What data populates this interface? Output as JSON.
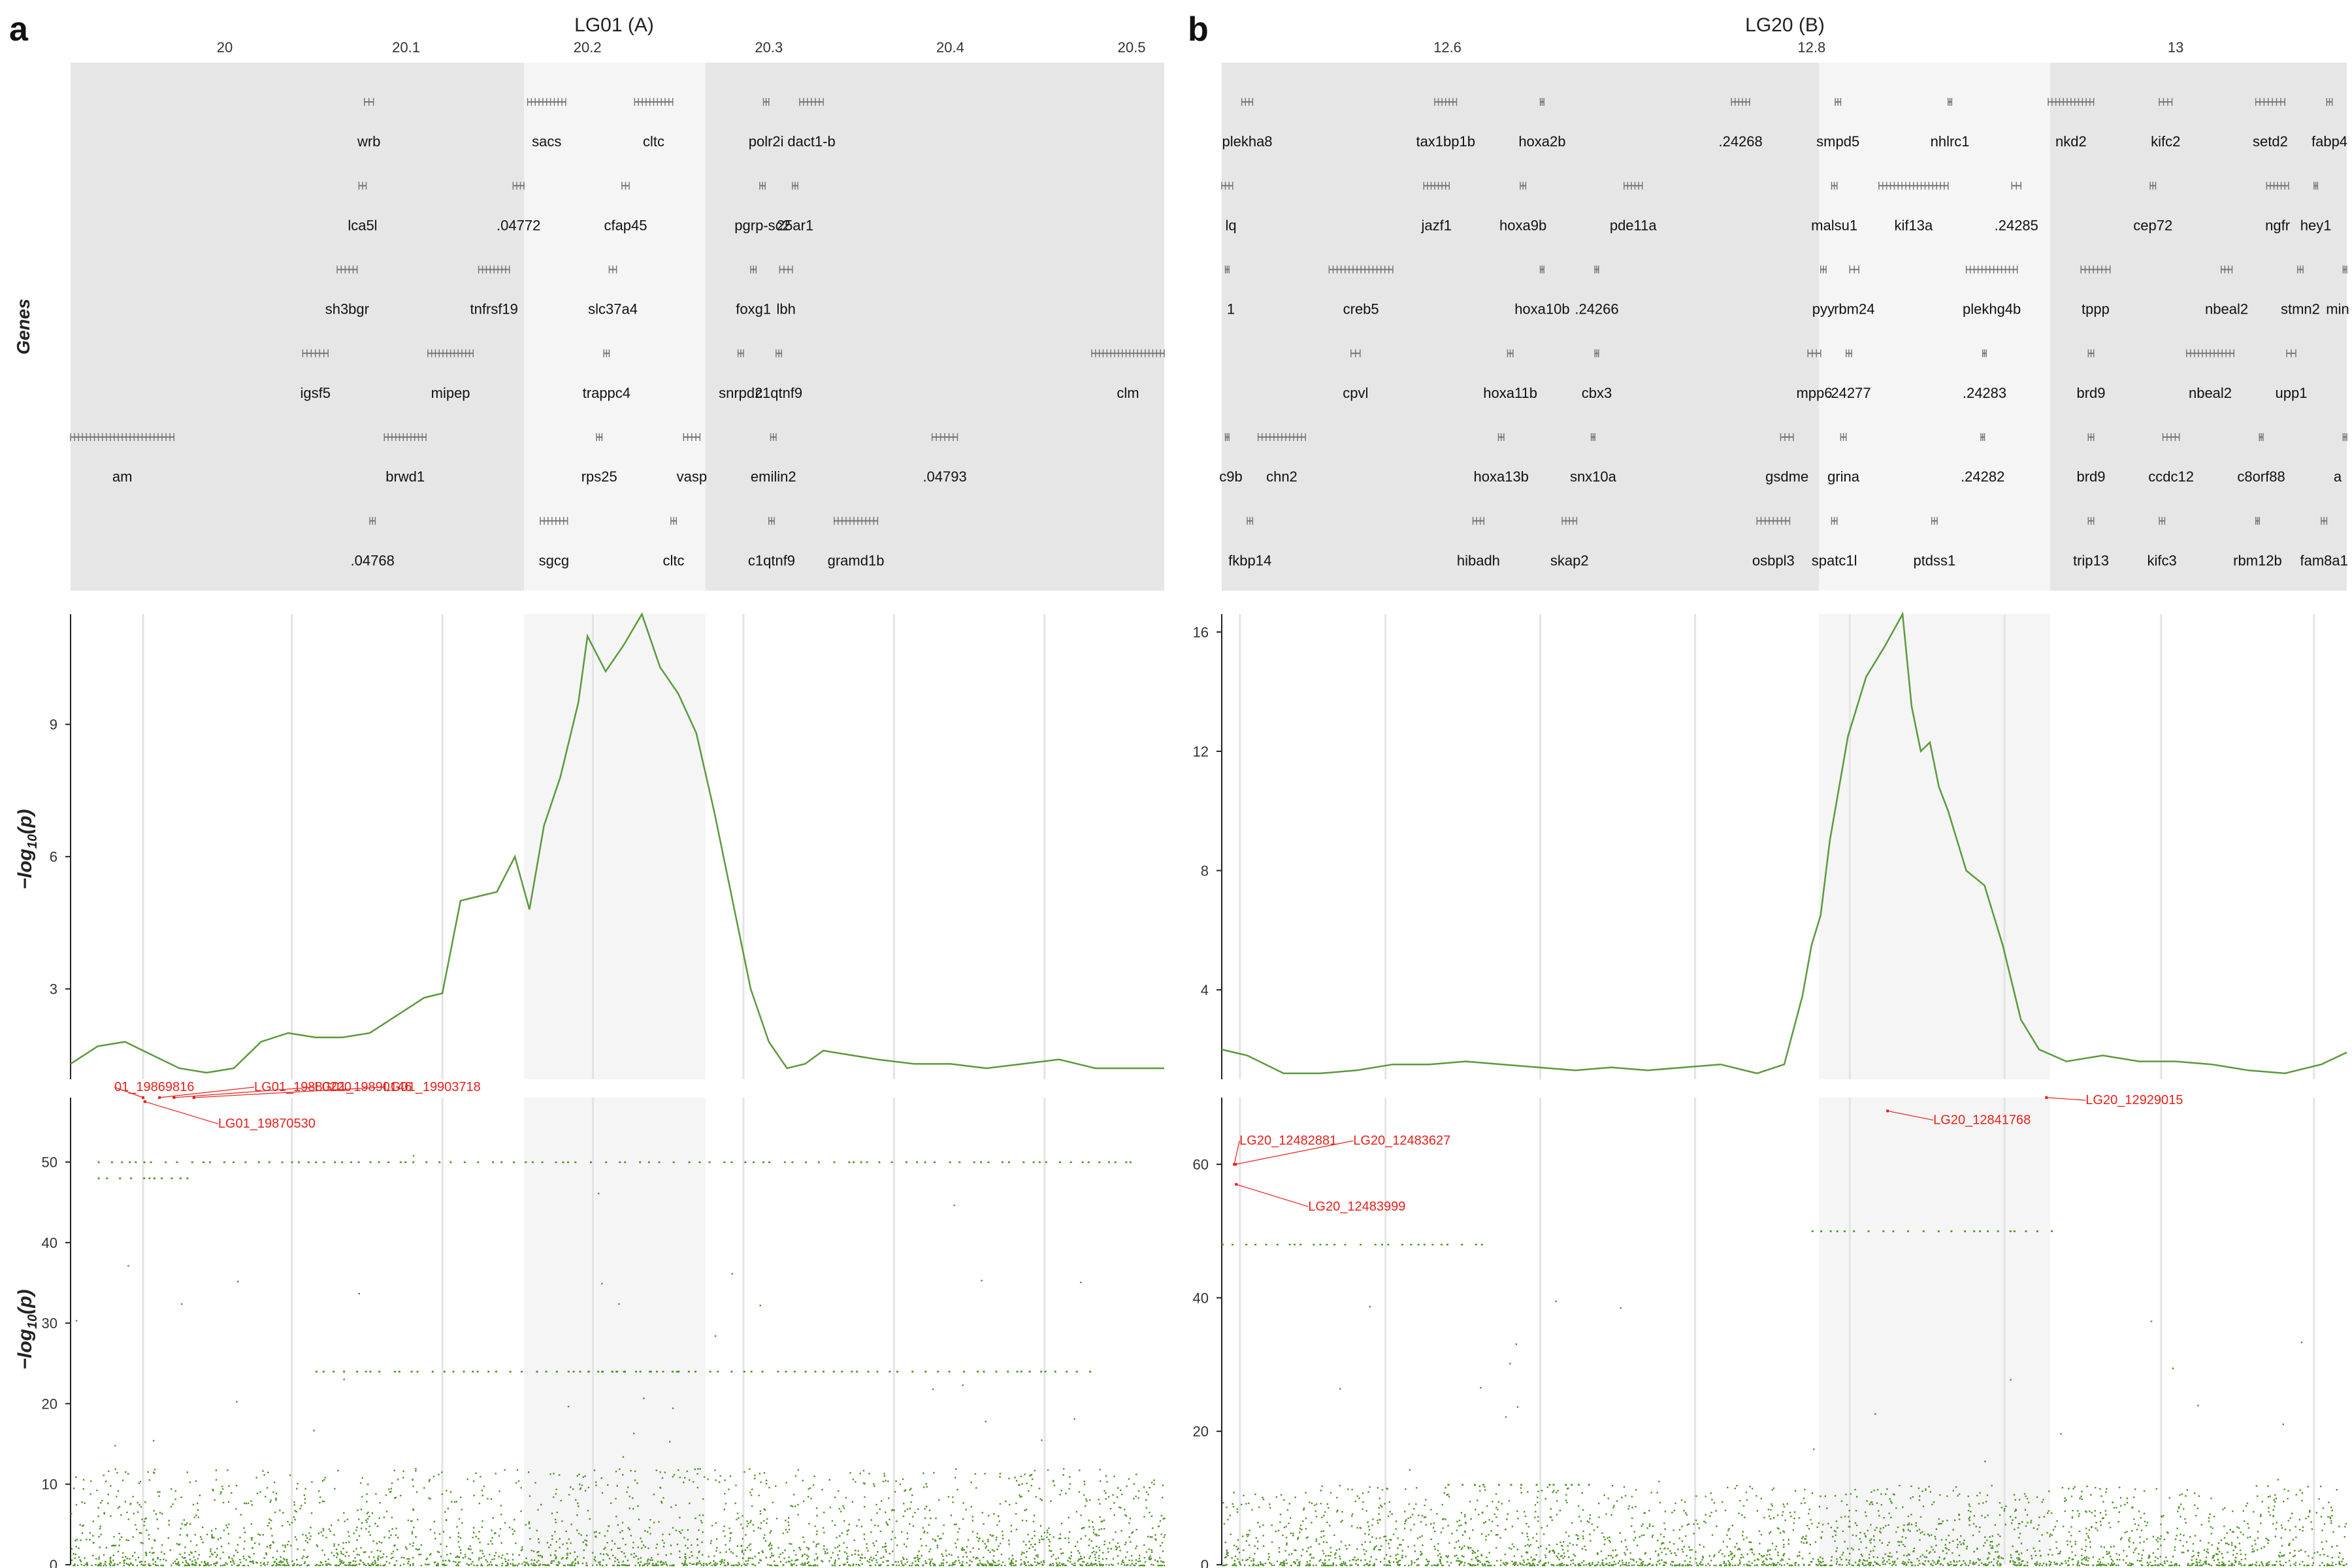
{
  "panels": [
    {
      "label": "a",
      "title": "LG01 (A)",
      "genes_ylabel": "Genes",
      "xlim": [
        19.915,
        20.518
      ],
      "xticks": [
        "20",
        "20.1",
        "20.2",
        "20.3",
        "20.4",
        "20.5"
      ],
      "xtick_values": [
        20.0,
        20.1,
        20.2,
        20.3,
        20.4,
        20.5
      ],
      "highlight": [
        20.165,
        20.265
      ],
      "vlines": [
        19.955,
        20.037,
        20.12,
        20.203,
        20.286,
        20.369,
        20.452
      ],
      "genes": [
        {
          "name": "wrb",
          "start": 20.077,
          "end": 20.082,
          "row": 0
        },
        {
          "name": "sacs",
          "start": 20.167,
          "end": 20.188,
          "row": 0
        },
        {
          "name": "cltc",
          "start": 20.226,
          "end": 20.247,
          "row": 0
        },
        {
          "name": "polr2i",
          "start": 20.297,
          "end": 20.3,
          "row": 0
        },
        {
          "name": "dact1-b",
          "start": 20.317,
          "end": 20.33,
          "row": 0
        },
        {
          "name": "lca5l",
          "start": 20.074,
          "end": 20.078,
          "row": 1
        },
        {
          "name": ".04772",
          "start": 20.159,
          "end": 20.165,
          "row": 1
        },
        {
          "name": "cfap45",
          "start": 20.219,
          "end": 20.223,
          "row": 1
        },
        {
          "name": "pgrp-sc2",
          "start": 20.295,
          "end": 20.298,
          "row": 1
        },
        {
          "name": "25ar1",
          "start": 20.313,
          "end": 20.316,
          "row": 1
        },
        {
          "name": "sh3bgr",
          "start": 20.062,
          "end": 20.073,
          "row": 2
        },
        {
          "name": "tnfrsf19",
          "start": 20.14,
          "end": 20.157,
          "row": 2
        },
        {
          "name": "slc37a4",
          "start": 20.212,
          "end": 20.216,
          "row": 2
        },
        {
          "name": "foxg1",
          "start": 20.29,
          "end": 20.293,
          "row": 2
        },
        {
          "name": "lbh",
          "start": 20.306,
          "end": 20.313,
          "row": 2
        },
        {
          "name": "igsf5",
          "start": 20.043,
          "end": 20.057,
          "row": 3
        },
        {
          "name": "mipep",
          "start": 20.112,
          "end": 20.137,
          "row": 3
        },
        {
          "name": "trappc4",
          "start": 20.209,
          "end": 20.212,
          "row": 3
        },
        {
          "name": "snrpd2",
          "start": 20.283,
          "end": 20.286,
          "row": 3
        },
        {
          "name": "c1qtnf9",
          "start": 20.304,
          "end": 20.307,
          "row": 3
        },
        {
          "name": "clm",
          "start": 20.478,
          "end": 20.518,
          "row": 3
        },
        {
          "name": "am",
          "start": 19.915,
          "end": 19.972,
          "row": 4
        },
        {
          "name": "brwd1",
          "start": 20.088,
          "end": 20.111,
          "row": 4
        },
        {
          "name": "rps25",
          "start": 20.205,
          "end": 20.208,
          "row": 4
        },
        {
          "name": "vasp",
          "start": 20.253,
          "end": 20.262,
          "row": 4
        },
        {
          "name": "emilin2",
          "start": 20.301,
          "end": 20.304,
          "row": 4
        },
        {
          "name": ".04793",
          "start": 20.39,
          "end": 20.404,
          "row": 4
        },
        {
          "name": ".04768",
          "start": 20.08,
          "end": 20.083,
          "row": 5
        },
        {
          "name": "sgcg",
          "start": 20.174,
          "end": 20.189,
          "row": 5
        },
        {
          "name": "cltc",
          "start": 20.246,
          "end": 20.249,
          "row": 5
        },
        {
          "name": "c1qtnf9",
          "start": 20.3,
          "end": 20.303,
          "row": 5
        },
        {
          "name": "gramd1b",
          "start": 20.336,
          "end": 20.36,
          "row": 5
        }
      ],
      "line_ylabel": "-log10(p)",
      "line_ylim": [
        0.95,
        11.5
      ],
      "line_yticks": [
        "3",
        "6",
        "9"
      ],
      "line_ytick_values": [
        3,
        6,
        9
      ],
      "scatter_ylabel": "-log10(p)",
      "scatter_ylim": [
        0,
        58
      ],
      "scatter_yticks": [
        "0",
        "10",
        "20",
        "30",
        "40",
        "50"
      ],
      "scatter_ytick_values": [
        0,
        10,
        20,
        30,
        40,
        50
      ],
      "scatter_labels": [
        "01_19869816",
        "LG01_19870530",
        "LG01_19880220",
        "LG01_19890146",
        "LG01_19903718"
      ]
    },
    {
      "label": "b",
      "title": "LG20 (B)",
      "genes_ylabel": "",
      "xlim": [
        12.476,
        13.094
      ],
      "xticks": [
        "12.6",
        "12.8",
        "13"
      ],
      "xtick_values": [
        12.6,
        12.8,
        13.0
      ],
      "highlight": [
        12.804,
        12.931
      ],
      "vlines": [
        12.486,
        12.566,
        12.651,
        12.736,
        12.821,
        12.906,
        12.992,
        13.076
      ],
      "genes": [
        {
          "name": "plekha8",
          "start": 12.487,
          "end": 12.493,
          "row": 0
        },
        {
          "name": "tax1bp1b",
          "start": 12.593,
          "end": 12.605,
          "row": 0
        },
        {
          "name": "hoxa2b",
          "start": 12.651,
          "end": 12.653,
          "row": 0
        },
        {
          "name": ".24268",
          "start": 12.756,
          "end": 12.766,
          "row": 0
        },
        {
          "name": "smpd5",
          "start": 12.813,
          "end": 12.816,
          "row": 0
        },
        {
          "name": "nhlrc1",
          "start": 12.875,
          "end": 12.877,
          "row": 0
        },
        {
          "name": "nkd2",
          "start": 12.93,
          "end": 12.955,
          "row": 0
        },
        {
          "name": "kifc2",
          "start": 12.991,
          "end": 12.998,
          "row": 0
        },
        {
          "name": "setd2",
          "start": 13.044,
          "end": 13.06,
          "row": 0
        },
        {
          "name": "fabp4",
          "start": 13.083,
          "end": 13.086,
          "row": 0
        },
        {
          "name": "lq",
          "start": 12.476,
          "end": 12.482,
          "row": 1
        },
        {
          "name": "jazf1",
          "start": 12.587,
          "end": 12.601,
          "row": 1
        },
        {
          "name": "hoxa9b",
          "start": 12.64,
          "end": 12.643,
          "row": 1
        },
        {
          "name": "pde11a",
          "start": 12.697,
          "end": 12.707,
          "row": 1
        },
        {
          "name": "malsu1",
          "start": 12.811,
          "end": 12.814,
          "row": 1
        },
        {
          "name": "kif13a",
          "start": 12.837,
          "end": 12.875,
          "row": 1
        },
        {
          "name": ".24285",
          "start": 12.91,
          "end": 12.915,
          "row": 1
        },
        {
          "name": "cep72",
          "start": 12.986,
          "end": 12.989,
          "row": 1
        },
        {
          "name": "ngfr",
          "start": 13.05,
          "end": 13.062,
          "row": 1
        },
        {
          "name": "hey1",
          "start": 13.076,
          "end": 13.078,
          "row": 1
        },
        {
          "name": "1",
          "start": 12.478,
          "end": 12.48,
          "row": 2
        },
        {
          "name": "creb5",
          "start": 12.535,
          "end": 12.57,
          "row": 2
        },
        {
          "name": "hoxa10b",
          "start": 12.651,
          "end": 12.653,
          "row": 2
        },
        {
          "name": ".24266",
          "start": 12.681,
          "end": 12.683,
          "row": 2
        },
        {
          "name": "pyy",
          "start": 12.805,
          "end": 12.808,
          "row": 2
        },
        {
          "name": "rbm24",
          "start": 12.821,
          "end": 12.826,
          "row": 2
        },
        {
          "name": "plekhg4b",
          "start": 12.885,
          "end": 12.913,
          "row": 2
        },
        {
          "name": "tppp",
          "start": 12.948,
          "end": 12.964,
          "row": 2
        },
        {
          "name": "nbeal2",
          "start": 13.025,
          "end": 13.031,
          "row": 2
        },
        {
          "name": "stmn2",
          "start": 13.067,
          "end": 13.07,
          "row": 2
        },
        {
          "name": "min",
          "start": 13.092,
          "end": 13.094,
          "row": 2
        },
        {
          "name": "cpvl",
          "start": 12.547,
          "end": 12.552,
          "row": 3
        },
        {
          "name": "hoxa11b",
          "start": 12.633,
          "end": 12.636,
          "row": 3
        },
        {
          "name": "cbx3",
          "start": 12.681,
          "end": 12.683,
          "row": 3
        },
        {
          "name": "mpp6",
          "start": 12.798,
          "end": 12.805,
          "row": 3
        },
        {
          "name": ".24277",
          "start": 12.819,
          "end": 12.822,
          "row": 3
        },
        {
          "name": ".24283",
          "start": 12.894,
          "end": 12.896,
          "row": 3
        },
        {
          "name": "brd9",
          "start": 12.952,
          "end": 12.955,
          "row": 3
        },
        {
          "name": "nbeal2",
          "start": 13.006,
          "end": 13.032,
          "row": 3
        },
        {
          "name": "upp1",
          "start": 13.061,
          "end": 13.066,
          "row": 3
        },
        {
          "name": "c9b",
          "start": 12.478,
          "end": 12.48,
          "row": 4
        },
        {
          "name": "chn2",
          "start": 12.496,
          "end": 12.522,
          "row": 4
        },
        {
          "name": "hoxa13b",
          "start": 12.628,
          "end": 12.631,
          "row": 4
        },
        {
          "name": "snx10a",
          "start": 12.679,
          "end": 12.681,
          "row": 4
        },
        {
          "name": "gsdme",
          "start": 12.783,
          "end": 12.79,
          "row": 4
        },
        {
          "name": "grina",
          "start": 12.816,
          "end": 12.819,
          "row": 4
        },
        {
          "name": ".24282",
          "start": 12.893,
          "end": 12.895,
          "row": 4
        },
        {
          "name": "brd9",
          "start": 12.952,
          "end": 12.955,
          "row": 4
        },
        {
          "name": "ccdc12",
          "start": 12.993,
          "end": 13.002,
          "row": 4
        },
        {
          "name": "c8orf88",
          "start": 13.046,
          "end": 13.048,
          "row": 4
        },
        {
          "name": "a",
          "start": 13.092,
          "end": 13.094,
          "row": 4
        },
        {
          "name": "fkbp14",
          "start": 12.49,
          "end": 12.493,
          "row": 5
        },
        {
          "name": "hibadh",
          "start": 12.614,
          "end": 12.62,
          "row": 5
        },
        {
          "name": "skap2",
          "start": 12.663,
          "end": 12.671,
          "row": 5
        },
        {
          "name": "osbpl3",
          "start": 12.77,
          "end": 12.788,
          "row": 5
        },
        {
          "name": "spatc1l",
          "start": 12.811,
          "end": 12.814,
          "row": 5
        },
        {
          "name": "ptdss1",
          "start": 12.866,
          "end": 12.869,
          "row": 5
        },
        {
          "name": "trip13",
          "start": 12.952,
          "end": 12.955,
          "row": 5
        },
        {
          "name": "kifc3",
          "start": 12.991,
          "end": 12.994,
          "row": 5
        },
        {
          "name": "rbm12b",
          "start": 13.044,
          "end": 13.046,
          "row": 5
        },
        {
          "name": "fam8a1",
          "start": 13.08,
          "end": 13.083,
          "row": 5
        }
      ],
      "line_ylabel": "",
      "line_ylim": [
        1.0,
        16.6
      ],
      "line_yticks": [
        "4",
        "8",
        "12",
        "16"
      ],
      "line_ytick_values": [
        4,
        8,
        12,
        16
      ],
      "scatter_ylabel": "",
      "scatter_ylim": [
        0,
        70
      ],
      "scatter_yticks": [
        "0",
        "20",
        "40",
        "60"
      ],
      "scatter_ytick_values": [
        0,
        20,
        40,
        60
      ],
      "scatter_labels": [
        "LG20_12482881",
        "LG20_12483627",
        "LG20_12483999",
        "LG20_12841768",
        "LG20_12929015"
      ]
    }
  ],
  "colors": {
    "line": "#5a9a3a",
    "points": "#4f9127",
    "label_red": "#e8201b",
    "gene_band": "#e6e6e6",
    "highlight": "#f5f5f5",
    "gene_mark": "#777777",
    "grid": "#e4e4e4",
    "text": "#222222"
  },
  "chart_data": [
    {
      "type": "line",
      "title": "LG01 (A)",
      "xlabel": "",
      "ylabel": "-log10(p)",
      "xlim": [
        19.915,
        20.518
      ],
      "ylim": [
        0.95,
        11.5
      ],
      "x": [
        19.915,
        19.93,
        19.945,
        19.96,
        19.975,
        19.99,
        20.005,
        20.02,
        20.035,
        20.05,
        20.065,
        20.08,
        20.095,
        20.11,
        20.12,
        20.13,
        20.14,
        20.15,
        20.16,
        20.168,
        20.176,
        20.185,
        20.195,
        20.2,
        20.21,
        20.22,
        20.23,
        20.24,
        20.25,
        20.26,
        20.27,
        20.28,
        20.29,
        20.3,
        20.31,
        20.32,
        20.33,
        20.345,
        20.36,
        20.38,
        20.4,
        20.42,
        20.44,
        20.46,
        20.48,
        20.5,
        20.518
      ],
      "y": [
        1.3,
        1.7,
        1.8,
        1.5,
        1.2,
        1.1,
        1.2,
        1.8,
        2.0,
        1.9,
        1.9,
        2.0,
        2.4,
        2.8,
        2.9,
        5.0,
        5.1,
        5.2,
        6.0,
        4.8,
        6.7,
        7.8,
        9.5,
        11.0,
        10.2,
        10.8,
        11.5,
        10.3,
        9.7,
        8.8,
        7.0,
        5.0,
        3.0,
        1.8,
        1.2,
        1.3,
        1.6,
        1.5,
        1.4,
        1.3,
        1.3,
        1.2,
        1.3,
        1.4,
        1.2,
        1.2,
        1.2
      ]
    },
    {
      "type": "line",
      "title": "LG20 (B)",
      "xlabel": "",
      "ylabel": "",
      "xlim": [
        12.476,
        13.094
      ],
      "ylim": [
        1.0,
        16.6
      ],
      "x": [
        12.476,
        12.49,
        12.51,
        12.53,
        12.55,
        12.57,
        12.59,
        12.61,
        12.63,
        12.65,
        12.67,
        12.69,
        12.71,
        12.73,
        12.75,
        12.77,
        12.785,
        12.795,
        12.8,
        12.805,
        12.81,
        12.82,
        12.83,
        12.84,
        12.85,
        12.855,
        12.86,
        12.865,
        12.87,
        12.875,
        12.885,
        12.895,
        12.905,
        12.915,
        12.925,
        12.94,
        12.96,
        12.98,
        13.0,
        13.02,
        13.04,
        13.06,
        13.08,
        13.094
      ],
      "y": [
        2.0,
        1.8,
        1.2,
        1.2,
        1.3,
        1.5,
        1.5,
        1.6,
        1.5,
        1.4,
        1.3,
        1.4,
        1.3,
        1.4,
        1.5,
        1.2,
        1.5,
        3.8,
        5.5,
        6.5,
        9.0,
        12.5,
        14.5,
        15.5,
        16.6,
        13.5,
        12.0,
        12.3,
        10.8,
        10.0,
        8.0,
        7.5,
        5.5,
        3.0,
        2.0,
        1.6,
        1.8,
        1.6,
        1.6,
        1.5,
        1.3,
        1.2,
        1.5,
        1.9
      ]
    },
    {
      "type": "scatter",
      "title": "LG01 (A)",
      "xlabel": "",
      "ylabel": "-log10(p)",
      "xlim": [
        19.915,
        20.518
      ],
      "ylim": [
        0,
        58
      ],
      "points": [
        {
          "x": 19.955,
          "y": 58,
          "label": "01_19869816"
        },
        {
          "x": 19.956,
          "y": 57.5,
          "label": "LG01_19870530"
        },
        {
          "x": 19.964,
          "y": 58,
          "label": "LG01_19880220"
        },
        {
          "x": 19.972,
          "y": 58,
          "label": "LG01_19890146"
        },
        {
          "x": 19.983,
          "y": 58,
          "label": "LG01_19903718"
        }
      ],
      "bands": [
        {
          "y": 50,
          "x_from": 19.93,
          "x_to": 20.5
        },
        {
          "y": 48,
          "x_from": 19.93,
          "x_to": 19.98
        },
        {
          "y": 24,
          "x_from": 20.05,
          "x_to": 20.48
        },
        {
          "y": 24,
          "x_from": 20.2,
          "x_to": 20.25
        }
      ]
    },
    {
      "type": "scatter",
      "title": "LG20 (B)",
      "xlabel": "",
      "ylabel": "",
      "xlim": [
        12.476,
        13.094
      ],
      "ylim": [
        0,
        70
      ],
      "points": [
        {
          "x": 12.482881,
          "y": 60,
          "label": "LG20_12482881"
        },
        {
          "x": 12.483627,
          "y": 60,
          "label": "LG20_12483627"
        },
        {
          "x": 12.483999,
          "y": 57,
          "label": "LG20_12483999"
        },
        {
          "x": 12.841768,
          "y": 68,
          "label": "LG20_12841768"
        },
        {
          "x": 12.929015,
          "y": 70,
          "label": "LG20_12929015"
        }
      ],
      "bands": [
        {
          "y": 50,
          "x_from": 12.8,
          "x_to": 12.935
        },
        {
          "y": 48,
          "x_from": 12.476,
          "x_to": 12.62
        },
        {
          "y": 12,
          "x_from": 12.6,
          "x_to": 12.68
        }
      ]
    }
  ]
}
